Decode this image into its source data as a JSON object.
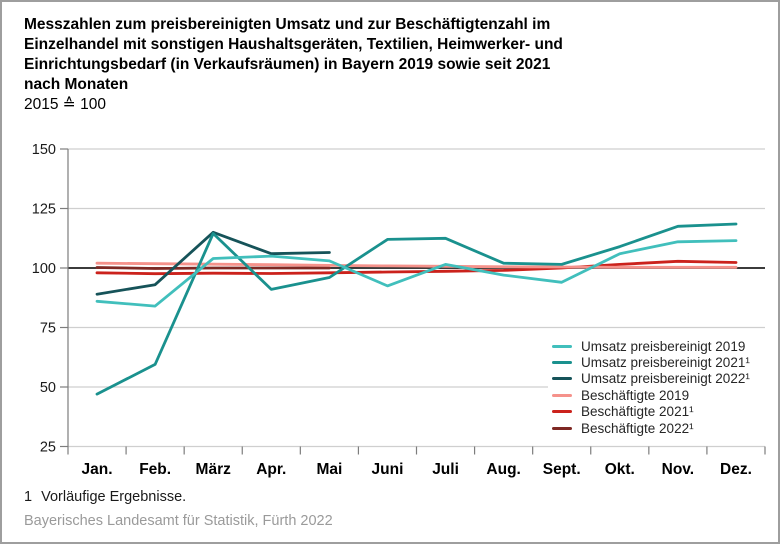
{
  "header": {
    "title_lines": [
      "Messzahlen zum preisbereinigten Umsatz und zur Beschäftigtenzahl im",
      "Einzelhandel mit sonstigen Haushaltsgeräten, Textilien, Heimwerker- und",
      "Einrichtungsbedarf (in Verkaufsräumen) in Bayern 2019 sowie seit 2021",
      "nach Monaten"
    ],
    "subtitle": "2015 ≙ 100"
  },
  "chart_data": {
    "type": "line",
    "title": "Messzahlen zum preisbereinigten Umsatz und zur Beschäftigtenzahl im Einzelhandel, Bayern",
    "x_categories": [
      "Jan.",
      "Feb.",
      "März",
      "Apr.",
      "Mai",
      "Juni",
      "Juli",
      "Aug.",
      "Sept.",
      "Okt.",
      "Nov.",
      "Dez."
    ],
    "y_axis": {
      "min": 25,
      "max": 150,
      "ticks": [
        150,
        125,
        100,
        75,
        50,
        25
      ],
      "baseline": 100
    },
    "grid": true,
    "legend_position": "inside-right",
    "colors": {
      "grid": "#cfcfcf",
      "baseline": "#1f1f1f",
      "axis": "#7d7d7d",
      "tick_label": "#1a1a1a"
    },
    "series": [
      {
        "name": "Umsatz preisbereinigt 2019",
        "color": "#41BFBC",
        "values": [
          86,
          84,
          104,
          105,
          103,
          92.5,
          101.5,
          97,
          94,
          106,
          111,
          111.5
        ]
      },
      {
        "name": "Umsatz preisbereinigt 2021¹",
        "color": "#1A918E",
        "values": [
          47,
          59.5,
          114.5,
          91,
          96,
          112,
          112.5,
          102,
          101.5,
          109,
          117.5,
          118.5
        ]
      },
      {
        "name": "Umsatz preisbereinigt 2022¹",
        "color": "#165359",
        "values": [
          89,
          93,
          115,
          106,
          106.5,
          null,
          null,
          null,
          null,
          null,
          null,
          null
        ]
      },
      {
        "name": "Beschäftigte 2019",
        "color": "#F5928B",
        "values": [
          102,
          101.8,
          101.6,
          101.4,
          101.1,
          100.9,
          100.7,
          100.5,
          100.4,
          100.3,
          100.3,
          100.3
        ]
      },
      {
        "name": "Beschäftigte 2021¹",
        "color": "#CB221C",
        "values": [
          98,
          97.6,
          97.8,
          97.7,
          98,
          98.3,
          98.6,
          99,
          100,
          101.5,
          102.8,
          102.3
        ]
      },
      {
        "name": "Beschäftigte 2022¹",
        "color": "#7E2823",
        "values": [
          100.2,
          99.8,
          100,
          100,
          100,
          null,
          null,
          null,
          null,
          null,
          null,
          null
        ]
      }
    ]
  },
  "footnote": {
    "marker": "1",
    "text": "Vorläufige Ergebnisse."
  },
  "source": "Bayerisches Landesamt für Statistik, Fürth 2022"
}
